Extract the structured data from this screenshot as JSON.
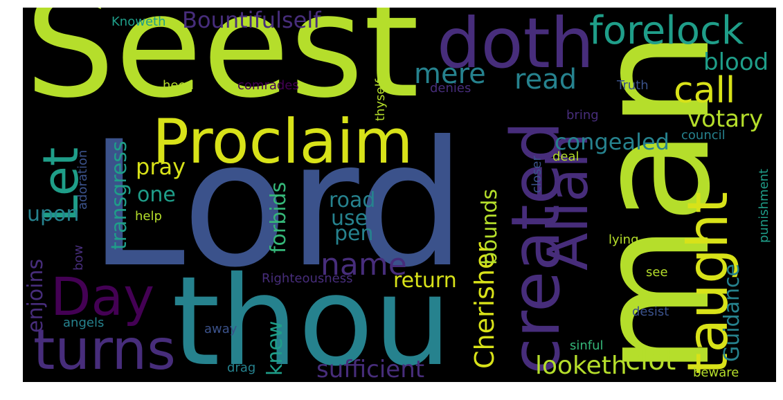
{
  "words": {
    "seest": "Seest",
    "lord": "Lord",
    "man": "man",
    "thou": "thou",
    "doth": "doth",
    "forelock": "forelock",
    "proclaim": "Proclaim",
    "created": "created",
    "taught": "taught",
    "allah": "Allah",
    "day": "Day",
    "turns": "turns",
    "let": "Let",
    "call": "call",
    "mere": "mere",
    "read": "read",
    "bountifulself": "Bountifulself",
    "blood": "blood",
    "votary": "votary",
    "congealed": "congealed",
    "name": "name",
    "clot": "clot",
    "cherisher": "Cherisher",
    "bounds": "bounds",
    "guidance": "Guidance",
    "sufficient": "sufficient",
    "looketh": "looketh",
    "return": "return",
    "knew": "knew",
    "forbids": "forbids",
    "pen": "pen",
    "use": "use",
    "road": "road",
    "transgress": "transgress",
    "pray": "pray",
    "one": "one",
    "upon": "upon",
    "enjoins": "enjoins",
    "adoration": "adoration",
    "knoweth": "Knoweth",
    "heed": "heed",
    "comrades": "comrades",
    "denies": "denies",
    "thyself": "thyself",
    "truth": "Truth",
    "bring": "bring",
    "council": "council",
    "closer": "closer",
    "deal": "deal",
    "punishment": "punishment",
    "lying": "lying",
    "righteousness": "Righteousness",
    "see": "see",
    "desist": "desist",
    "sinful": "sinful",
    "beware": "beware",
    "drag": "drag",
    "away": "away",
    "angels": "angels",
    "help": "help",
    "bow": "bow"
  },
  "colors": {
    "yellowgreen": "#b5de2b",
    "yellow": "#d8e219",
    "blue": "#3b528b",
    "teal": "#26828e",
    "tealgreen": "#1f9e89",
    "purple": "#440154",
    "purple2": "#472d7b",
    "green": "#35b779"
  }
}
